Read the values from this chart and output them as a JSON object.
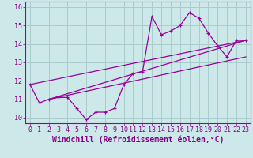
{
  "background_color": "#cce8e8",
  "grid_color": "#aacccc",
  "line_color": "#990099",
  "xlim": [
    -0.5,
    23.5
  ],
  "ylim": [
    9.7,
    16.3
  ],
  "xlabel": "Windchill (Refroidissement éolien,°C)",
  "xticks": [
    0,
    1,
    2,
    3,
    4,
    5,
    6,
    7,
    8,
    9,
    10,
    11,
    12,
    13,
    14,
    15,
    16,
    17,
    18,
    19,
    20,
    21,
    22,
    23
  ],
  "yticks": [
    10,
    11,
    12,
    13,
    14,
    15,
    16
  ],
  "series1_x": [
    0,
    1,
    2,
    3,
    4,
    5,
    6,
    7,
    8,
    9,
    10,
    11,
    12,
    13,
    14,
    15,
    16,
    17,
    18,
    19,
    20,
    21,
    22,
    23
  ],
  "series1_y": [
    11.8,
    10.8,
    11.0,
    11.1,
    11.1,
    10.5,
    9.9,
    10.3,
    10.3,
    10.5,
    11.8,
    12.4,
    12.5,
    15.5,
    14.5,
    14.7,
    15.0,
    15.7,
    15.4,
    14.6,
    13.9,
    13.3,
    14.2,
    14.2
  ],
  "series2_x": [
    0,
    23
  ],
  "series2_y": [
    11.8,
    14.2
  ],
  "series3_x": [
    2,
    23
  ],
  "series3_y": [
    11.0,
    13.3
  ],
  "series4_x": [
    2,
    23
  ],
  "series4_y": [
    11.0,
    14.2
  ],
  "font_color": "#880088",
  "font_size": 6,
  "xlabel_fontsize": 7
}
